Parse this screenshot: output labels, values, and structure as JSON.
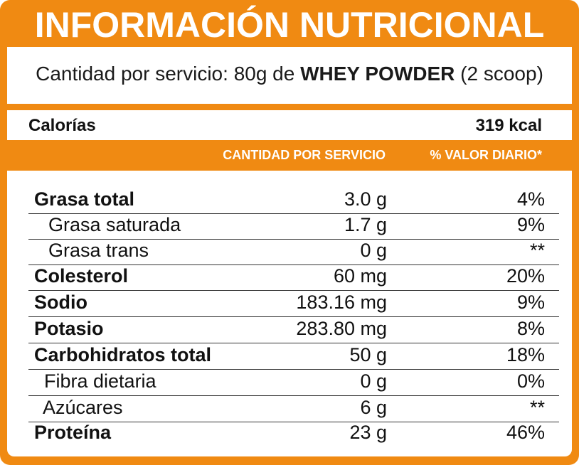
{
  "title": "INFORMACIÓN NUTRICIONAL",
  "serving": {
    "prefix": "Cantidad por servicio: 80g de ",
    "product": "WHEY POWDER",
    "suffix": " (2 scoop)"
  },
  "calories": {
    "label": "Calorías",
    "value": "319 kcal"
  },
  "headers": {
    "amount": "CANTIDAD POR SERVICIO",
    "daily_value": "% VALOR DIARIO*"
  },
  "colors": {
    "orange": "#f08a12",
    "white": "#ffffff",
    "text": "#111111"
  },
  "rows": [
    {
      "name": "Grasa total",
      "amount": "3.0 g",
      "dv": "4%",
      "bold": true
    },
    {
      "name": "Grasa saturada",
      "amount": "1.7 g",
      "dv": "9%",
      "bold": false
    },
    {
      "name": "Grasa trans",
      "amount": "0 g",
      "dv": "**",
      "bold": false
    },
    {
      "name": "Colesterol",
      "amount": "60 mg",
      "dv": "20%",
      "bold": true
    },
    {
      "name": "Sodio",
      "amount": "183.16 mg",
      "dv": "9%",
      "bold": true
    },
    {
      "name": "Potasio",
      "amount": "283.80 mg",
      "dv": "8%",
      "bold": true
    },
    {
      "name": "Carbohidratos total",
      "amount": "50 g",
      "dv": "18%",
      "bold": true
    },
    {
      "name": "Fibra dietaria",
      "amount": "0 g",
      "dv": "0%",
      "bold": false
    },
    {
      "name": "Azúcares",
      "amount": "6 g",
      "dv": "**",
      "bold": false
    },
    {
      "name": "Proteína",
      "amount": "23 g",
      "dv": "46%",
      "bold": true
    }
  ]
}
